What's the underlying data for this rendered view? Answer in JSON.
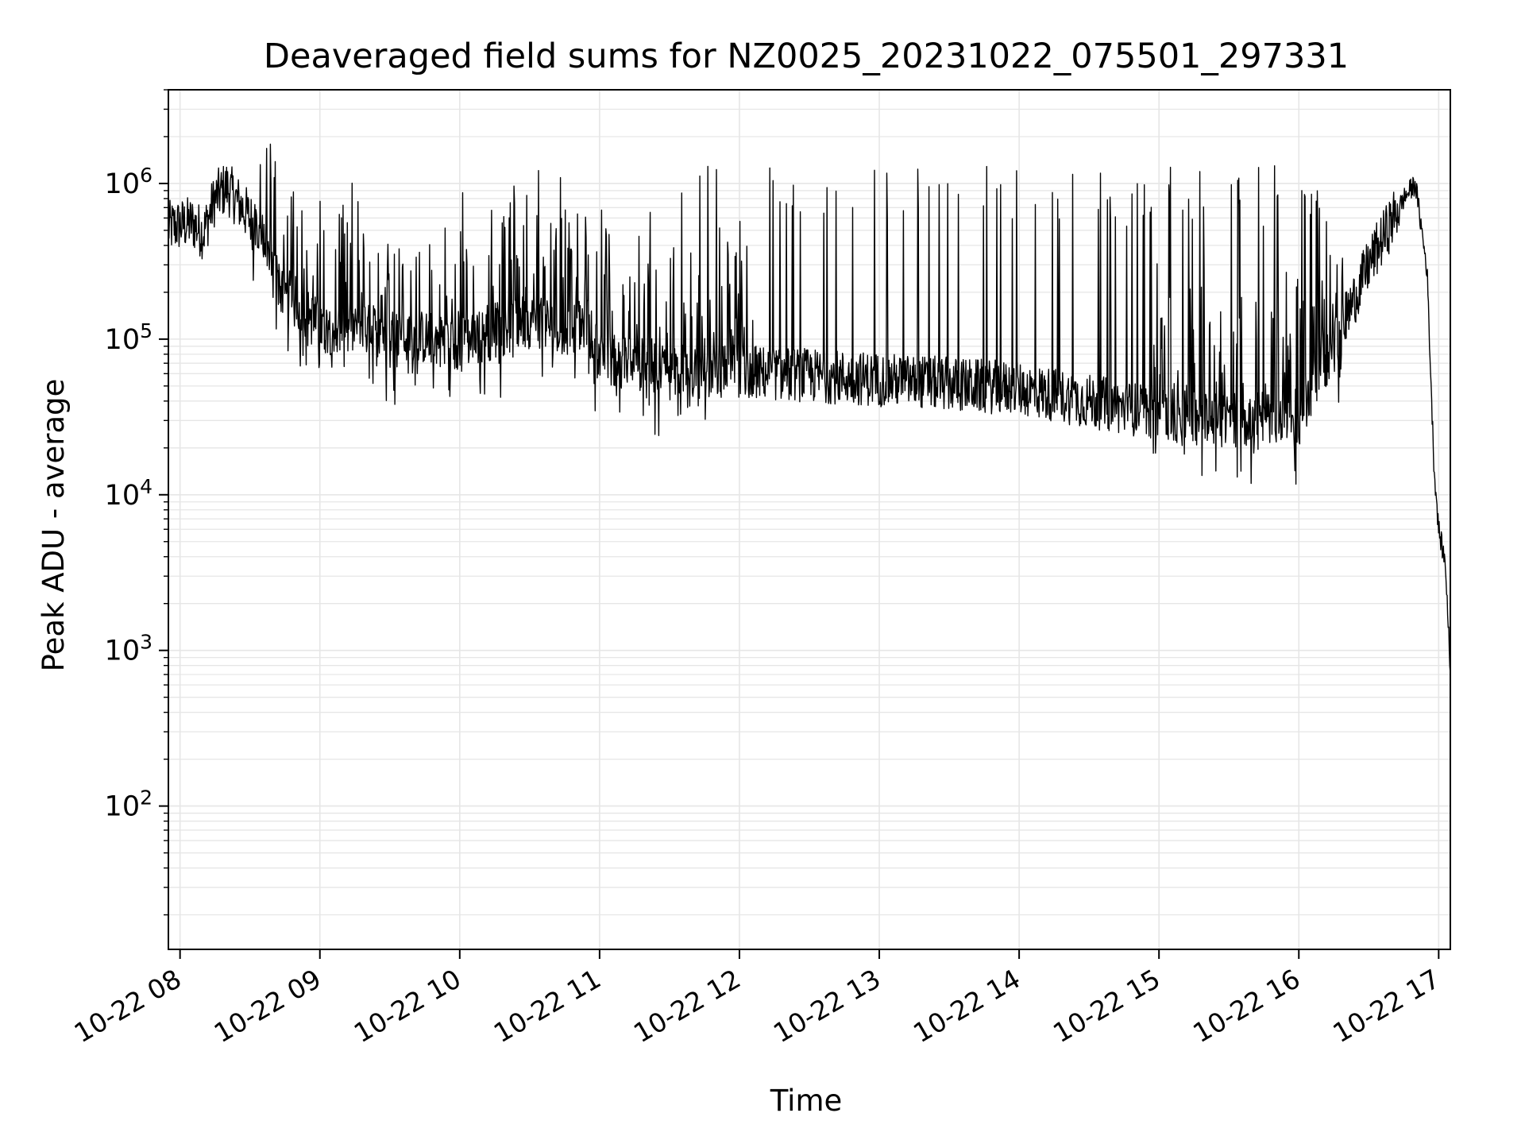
{
  "chart_data": {
    "type": "line",
    "title": "Deaveraged field sums for NZ0025_20231022_075501_297331",
    "xlabel": "Time",
    "ylabel": "Peak ADU - average",
    "yscale": "log",
    "ylim": [
      12,
      4000000
    ],
    "xlim": [
      "2023-10-22 07:55",
      "2023-10-22 17:05"
    ],
    "x_ticks": [
      {
        "t": "2023-10-22 08:00",
        "label": "10-22 08"
      },
      {
        "t": "2023-10-22 09:00",
        "label": "10-22 09"
      },
      {
        "t": "2023-10-22 10:00",
        "label": "10-22 10"
      },
      {
        "t": "2023-10-22 11:00",
        "label": "10-22 11"
      },
      {
        "t": "2023-10-22 12:00",
        "label": "10-22 12"
      },
      {
        "t": "2023-10-22 13:00",
        "label": "10-22 13"
      },
      {
        "t": "2023-10-22 14:00",
        "label": "10-22 14"
      },
      {
        "t": "2023-10-22 15:00",
        "label": "10-22 15"
      },
      {
        "t": "2023-10-22 16:00",
        "label": "10-22 16"
      },
      {
        "t": "2023-10-22 17:00",
        "label": "10-22 17"
      }
    ],
    "y_ticks": [
      {
        "exp": 2,
        "base": "10",
        "sup": "2"
      },
      {
        "exp": 3,
        "base": "10",
        "sup": "3"
      },
      {
        "exp": 4,
        "base": "10",
        "sup": "4"
      },
      {
        "exp": 5,
        "base": "10",
        "sup": "5"
      },
      {
        "exp": 6,
        "base": "10",
        "sup": "6"
      }
    ],
    "grid": true,
    "line_color": "#000000",
    "grid_color": "#e6e6e6",
    "series": [
      {
        "points": [
          [
            "2023-10-22 07:55",
            520000
          ],
          [
            "2023-10-22 08:05",
            560000
          ],
          [
            "2023-10-22 08:10",
            480000
          ],
          [
            "2023-10-22 08:15",
            800000
          ],
          [
            "2023-10-22 08:20",
            950000
          ],
          [
            "2023-10-22 08:30",
            600000
          ],
          [
            "2023-10-22 08:45",
            200000
          ],
          [
            "2023-10-22 09:00",
            120000
          ],
          [
            "2023-10-22 09:30",
            110000
          ],
          [
            "2023-10-22 10:00",
            95000
          ],
          [
            "2023-10-22 10:30",
            130000
          ],
          [
            "2023-10-22 10:55",
            120000
          ],
          [
            "2023-10-22 11:00",
            75000
          ],
          [
            "2023-10-22 11:30",
            65000
          ],
          [
            "2023-10-22 12:00",
            62000
          ],
          [
            "2023-10-22 13:00",
            55000
          ],
          [
            "2023-10-22 14:00",
            48000
          ],
          [
            "2023-10-22 14:30",
            40000
          ],
          [
            "2023-10-22 15:00",
            33000
          ],
          [
            "2023-10-22 15:30",
            30000
          ],
          [
            "2023-10-22 16:00",
            32000
          ],
          [
            "2023-10-22 16:15",
            90000
          ],
          [
            "2023-10-22 16:30",
            300000
          ],
          [
            "2023-10-22 16:45",
            800000
          ],
          [
            "2023-10-22 16:50",
            1000000
          ],
          [
            "2023-10-22 16:55",
            280000
          ],
          [
            "2023-10-22 16:58",
            15000
          ],
          [
            "2023-10-22 17:00",
            6000
          ],
          [
            "2023-10-22 17:03",
            3500
          ],
          [
            "2023-10-22 17:05",
            700
          ]
        ]
      }
    ]
  }
}
